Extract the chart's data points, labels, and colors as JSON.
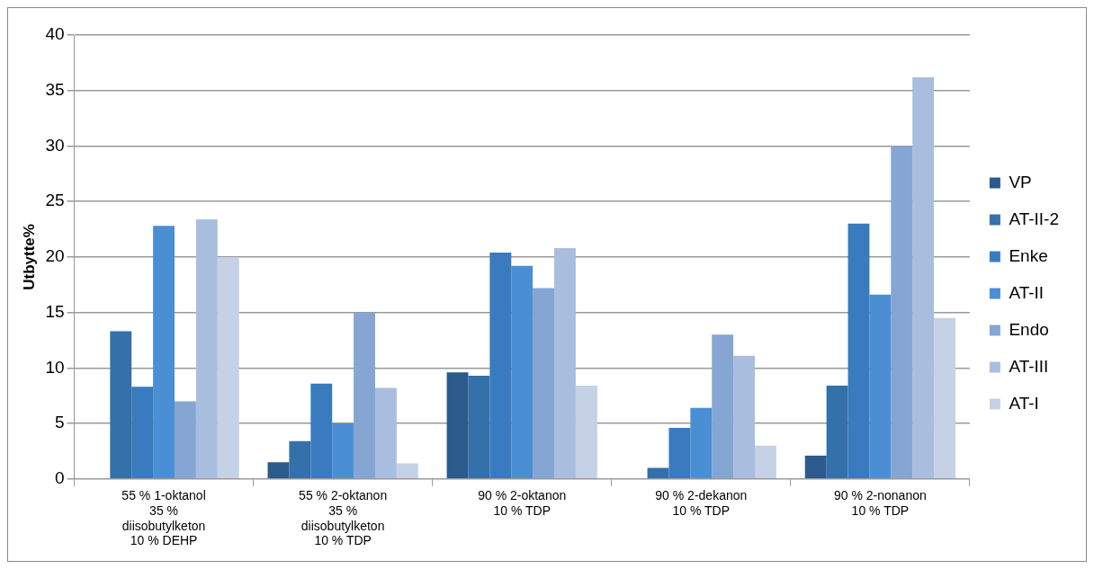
{
  "chart_data": {
    "type": "bar",
    "ylabel": "Utbytte%",
    "categories": [
      "55 % 1-oktanol\n35 %\ndiisobutylketon\n10 % DEHP",
      "55 % 2-oktanon\n35 %\ndiisobutylketon\n10 % TDP",
      "90 % 2-oktanon\n10 % TDP",
      "90 % 2-dekanon\n10 % TDP",
      "90 % 2-nonanon\n10 % TDP"
    ],
    "series": [
      {
        "name": "VP",
        "color": "#2b5a8c",
        "values": [
          null,
          1.5,
          9.6,
          null,
          2.1
        ]
      },
      {
        "name": "AT-II-2",
        "color": "#3470aa",
        "values": [
          13.3,
          3.4,
          9.3,
          1.0,
          8.4
        ]
      },
      {
        "name": "Enke",
        "color": "#3a7bbf",
        "values": [
          8.3,
          8.6,
          20.4,
          4.6,
          23.0
        ]
      },
      {
        "name": "AT-II",
        "color": "#4a8fd4",
        "values": [
          22.8,
          5.0,
          19.2,
          6.4,
          16.6
        ]
      },
      {
        "name": "Endo",
        "color": "#85a6d2",
        "values": [
          7.0,
          15.0,
          17.2,
          13.0,
          30.0
        ]
      },
      {
        "name": "AT-III",
        "color": "#a9bede",
        "values": [
          23.4,
          8.2,
          20.8,
          11.1,
          36.2
        ]
      },
      {
        "name": "AT-I",
        "color": "#c5d1e5",
        "values": [
          20.0,
          1.4,
          8.4,
          3.0,
          14.5
        ]
      }
    ],
    "ylim": [
      0,
      40
    ],
    "yticks": [
      0,
      5,
      10,
      15,
      20,
      25,
      30,
      35,
      40
    ],
    "grid": "y",
    "legend": "right"
  }
}
